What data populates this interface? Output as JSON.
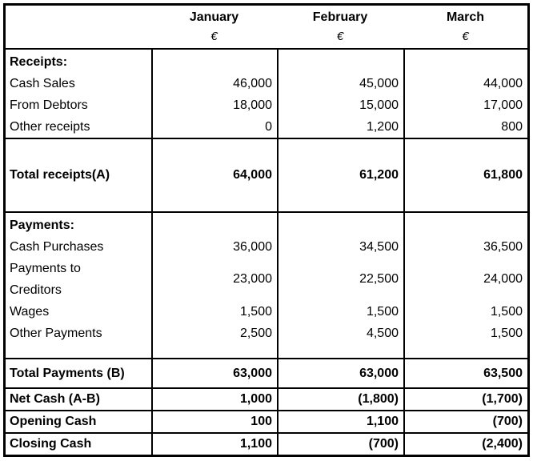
{
  "table": {
    "months": [
      "January",
      "February",
      "March"
    ],
    "currency_symbol": "€",
    "receipts": {
      "header": "Receipts:",
      "rows": [
        {
          "label": "Cash Sales",
          "values": [
            "46,000",
            "45,000",
            "44,000"
          ]
        },
        {
          "label": "From Debtors",
          "values": [
            "18,000",
            "15,000",
            "17,000"
          ]
        },
        {
          "label": "Other receipts",
          "values": [
            "0",
            "1,200",
            "800"
          ]
        }
      ],
      "total": {
        "label": "Total receipts(A)",
        "values": [
          "64,000",
          "61,200",
          "61,800"
        ]
      }
    },
    "payments": {
      "header": "Payments:",
      "rows": [
        {
          "label": "Cash Purchases",
          "values": [
            "36,000",
            "34,500",
            "36,500"
          ]
        },
        {
          "label": "Payments to Creditors",
          "values": [
            "23,000",
            "22,500",
            "24,000"
          ]
        },
        {
          "label": "Wages",
          "values": [
            "1,500",
            "1,500",
            "1,500"
          ]
        },
        {
          "label": "Other Payments",
          "values": [
            "2,500",
            "4,500",
            "1,500"
          ]
        }
      ],
      "total": {
        "label": "Total Payments (B)",
        "values": [
          "63,000",
          "63,000",
          "63,500"
        ]
      }
    },
    "summary": [
      {
        "label": "Net Cash (A-B)",
        "values": [
          "1,000",
          "(1,800)",
          "(1,700)"
        ]
      },
      {
        "label": "Opening Cash",
        "values": [
          "100",
          "1,100",
          "(700)"
        ]
      },
      {
        "label": "Closing Cash",
        "values": [
          "1,100",
          "(700)",
          "(2,400)"
        ]
      }
    ],
    "colors": {
      "border": "#000000",
      "text": "#000000",
      "background": "#ffffff"
    }
  }
}
